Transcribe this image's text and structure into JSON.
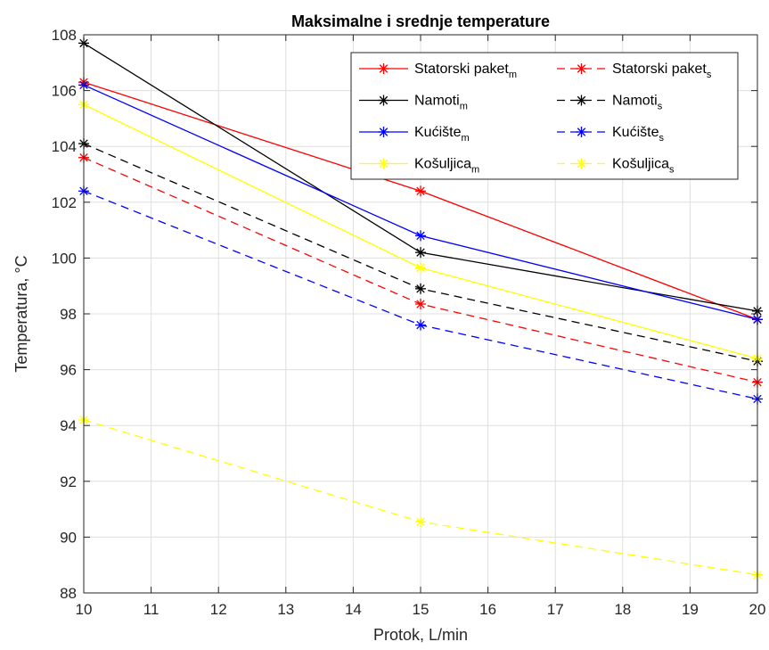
{
  "chart_data": {
    "type": "line",
    "title": "Maksimalne i srednje temperature",
    "xlabel": "Protok, L/min",
    "ylabel": "Temperatura, °C",
    "x": [
      10,
      15,
      20
    ],
    "xlim": [
      10,
      20
    ],
    "ylim": [
      88,
      108
    ],
    "xticks": [
      10,
      11,
      12,
      13,
      14,
      15,
      16,
      17,
      18,
      19,
      20
    ],
    "yticks": [
      88,
      90,
      92,
      94,
      96,
      98,
      100,
      102,
      104,
      106,
      108
    ],
    "grid": true,
    "legend_position": "top-right",
    "legend_columns": 2,
    "series": [
      {
        "name": "Statorski paket",
        "subscript": "m",
        "color": "#ff0000",
        "dash": "solid",
        "marker": "asterisk",
        "values": [
          106.3,
          102.4,
          97.8
        ]
      },
      {
        "name": "Statorski paket",
        "subscript": "s",
        "color": "#ff0000",
        "dash": "dashed",
        "marker": "asterisk",
        "values": [
          103.6,
          98.35,
          95.55
        ]
      },
      {
        "name": "Namoti",
        "subscript": "m",
        "color": "#000000",
        "dash": "solid",
        "marker": "asterisk",
        "values": [
          107.7,
          100.2,
          98.1
        ]
      },
      {
        "name": "Namoti",
        "subscript": "s",
        "color": "#000000",
        "dash": "dashed",
        "marker": "asterisk",
        "values": [
          104.1,
          98.9,
          96.3
        ]
      },
      {
        "name": "Kućište",
        "subscript": "m",
        "color": "#0000ff",
        "dash": "solid",
        "marker": "asterisk",
        "values": [
          106.2,
          100.8,
          97.8
        ]
      },
      {
        "name": "Kućište",
        "subscript": "s",
        "color": "#0000ff",
        "dash": "dashed",
        "marker": "asterisk",
        "values": [
          102.4,
          97.6,
          94.95
        ]
      },
      {
        "name": "Košuljica",
        "subscript": "m",
        "color": "#ffff00",
        "dash": "solid",
        "marker": "asterisk",
        "values": [
          105.5,
          99.65,
          96.4
        ]
      },
      {
        "name": "Košuljica",
        "subscript": "s",
        "color": "#ffff00",
        "dash": "dashed",
        "marker": "asterisk",
        "values": [
          94.2,
          90.55,
          88.65
        ]
      }
    ]
  }
}
